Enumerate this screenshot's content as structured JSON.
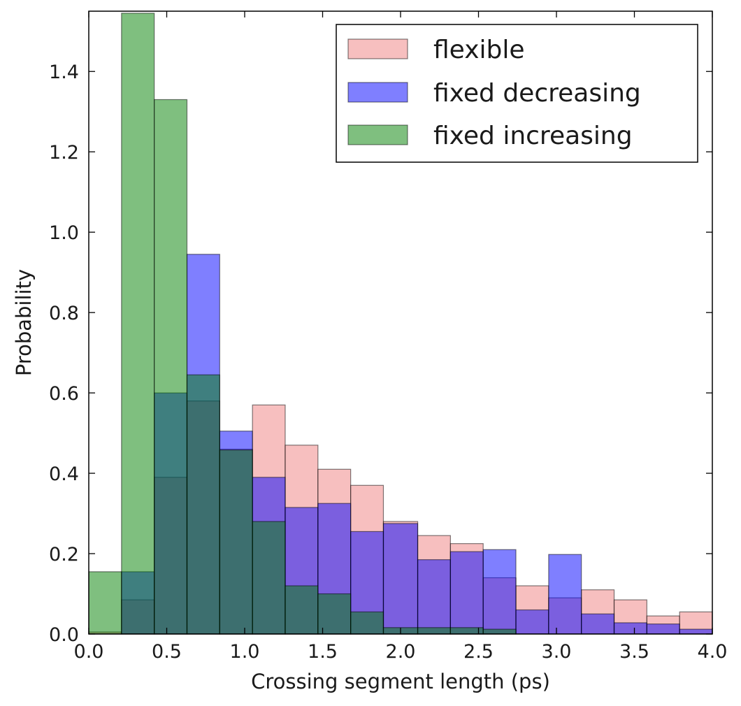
{
  "chart_data": {
    "type": "bar",
    "subtype": "overlaid-histogram",
    "xlabel": "Crossing segment length (ps)",
    "ylabel": "Probability",
    "xlim": [
      0.0,
      4.0
    ],
    "ylim": [
      0.0,
      1.55
    ],
    "x_ticks": [
      "0.0",
      "0.5",
      "1.0",
      "1.5",
      "2.0",
      "2.5",
      "3.0",
      "3.5",
      "4.0"
    ],
    "y_ticks": [
      "0.0",
      "0.2",
      "0.4",
      "0.6",
      "0.8",
      "1.0",
      "1.2",
      "1.4"
    ],
    "x_tick_values": [
      0,
      0.5,
      1,
      1.5,
      2,
      2.5,
      3,
      3.5,
      4
    ],
    "y_tick_values": [
      0,
      0.2,
      0.4,
      0.6,
      0.8,
      1.0,
      1.2,
      1.4
    ],
    "bin_edges": [
      0.0,
      0.21,
      0.42,
      0.63,
      0.84,
      1.05,
      1.26,
      1.47,
      1.68,
      1.89,
      2.11,
      2.32,
      2.53,
      2.74,
      2.95,
      3.16,
      3.37,
      3.58,
      3.79,
      4.0
    ],
    "legend_position": "upper right",
    "grid": false,
    "series": [
      {
        "name": "flexible",
        "color": "#f08080",
        "values": [
          0.005,
          0.085,
          0.39,
          0.58,
          0.46,
          0.57,
          0.47,
          0.41,
          0.37,
          0.28,
          0.245,
          0.225,
          0.14,
          0.12,
          0.09,
          0.11,
          0.085,
          0.045,
          0.055
        ]
      },
      {
        "name": "fixed decreasing",
        "color": "#0000ff",
        "values": [
          0.0,
          0.155,
          0.6,
          0.945,
          0.505,
          0.39,
          0.315,
          0.325,
          0.255,
          0.275,
          0.185,
          0.205,
          0.21,
          0.06,
          0.198,
          0.05,
          0.028,
          0.025,
          0.012
        ]
      },
      {
        "name": "fixed increasing",
        "color": "#008000",
        "values": [
          0.155,
          1.545,
          1.33,
          0.645,
          0.458,
          0.28,
          0.12,
          0.1,
          0.055,
          0.016,
          0.016,
          0.016,
          0.012,
          0.0,
          0.0,
          0.0,
          0.0,
          0.0,
          0.0
        ]
      }
    ]
  }
}
